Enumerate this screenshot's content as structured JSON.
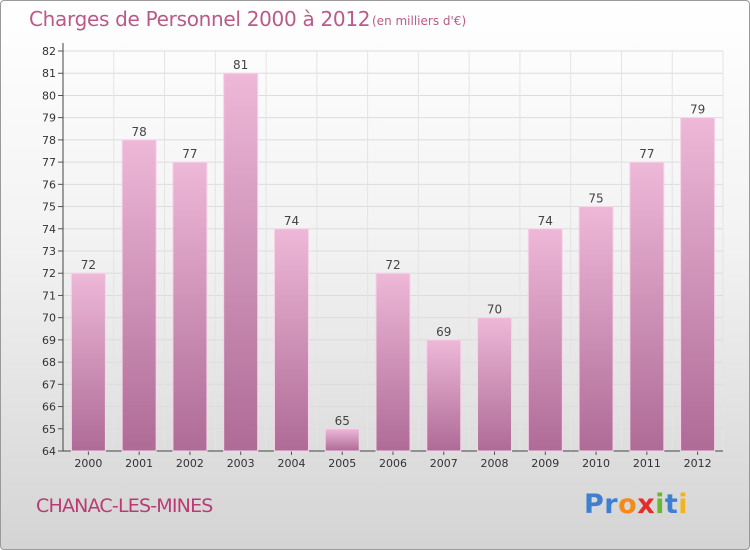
{
  "title": "Charges de Personnel 2000 à 2012",
  "subtitle": "(en milliers d'€)",
  "commune": "CHANAC-LES-MINES",
  "logo": {
    "letters": [
      "P",
      "r",
      "o",
      "x",
      "i",
      "t",
      "i"
    ],
    "colors": [
      "#3f7fd0",
      "#3f7fd0",
      "#f28a1c",
      "#e32c2c",
      "#6bb82e",
      "#3f7fd0",
      "#f2b41c"
    ]
  },
  "colors": {
    "bar_light": "#eeb8d8",
    "bar_dark": "#ae6b96",
    "bar_edge": "#f6d4e8",
    "title": "#ba5a88",
    "commune": "#bb3a73"
  },
  "chart_data": {
    "type": "bar",
    "categories": [
      "2000",
      "2001",
      "2002",
      "2003",
      "2004",
      "2005",
      "2006",
      "2007",
      "2008",
      "2009",
      "2010",
      "2011",
      "2012"
    ],
    "values": [
      72,
      78,
      77,
      81,
      74,
      65,
      72,
      69,
      70,
      74,
      75,
      77,
      79
    ],
    "ylim": [
      64,
      82
    ],
    "yticks": [
      64,
      65,
      66,
      67,
      68,
      69,
      70,
      71,
      72,
      73,
      74,
      75,
      76,
      77,
      78,
      79,
      80,
      81,
      82
    ],
    "grid": true,
    "legend": "none"
  }
}
